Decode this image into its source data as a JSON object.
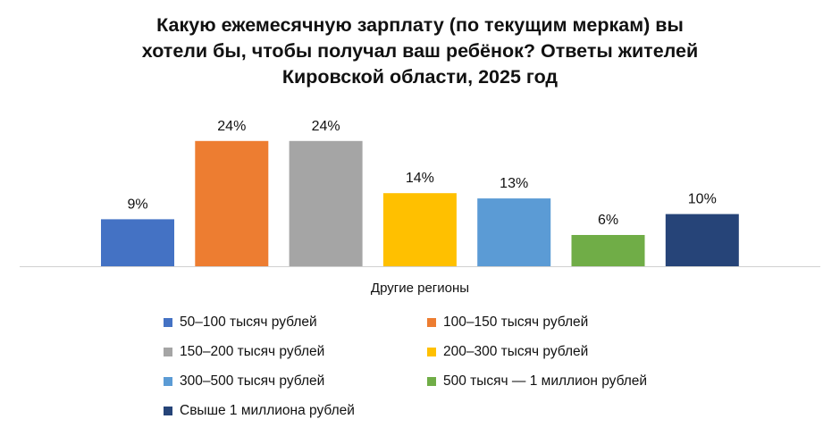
{
  "chart_data": {
    "type": "bar",
    "title_lines": [
      "Какую ежемесячную зарплату (по текущим меркам) вы",
      "хотели бы, чтобы получал ваш ребёнок? Ответы жителей",
      "Кировской области, 2025 год"
    ],
    "categories": [
      "Другие регионы"
    ],
    "ylim": [
      0,
      25
    ],
    "grid": false,
    "legend_position": "bottom",
    "series": [
      {
        "name": "50–100 тысяч рублей",
        "value": 9,
        "label": "9%",
        "color": "#4472C4"
      },
      {
        "name": "100–150 тысяч рублей",
        "value": 24,
        "label": "24%",
        "color": "#ED7D31"
      },
      {
        "name": "150–200 тысяч рублей",
        "value": 24,
        "label": "24%",
        "color": "#A5A5A5"
      },
      {
        "name": "200–300 тысяч рублей",
        "value": 14,
        "label": "14%",
        "color": "#FFC000"
      },
      {
        "name": "300–500 тысяч рублей",
        "value": 13,
        "label": "13%",
        "color": "#5B9BD5"
      },
      {
        "name": "500 тысяч — 1 миллион рублей",
        "value": 6,
        "label": "6%",
        "color": "#70AD47"
      },
      {
        "name": "Свыше 1 миллиона рублей",
        "value": 10,
        "label": "10%",
        "color": "#264478"
      }
    ]
  }
}
